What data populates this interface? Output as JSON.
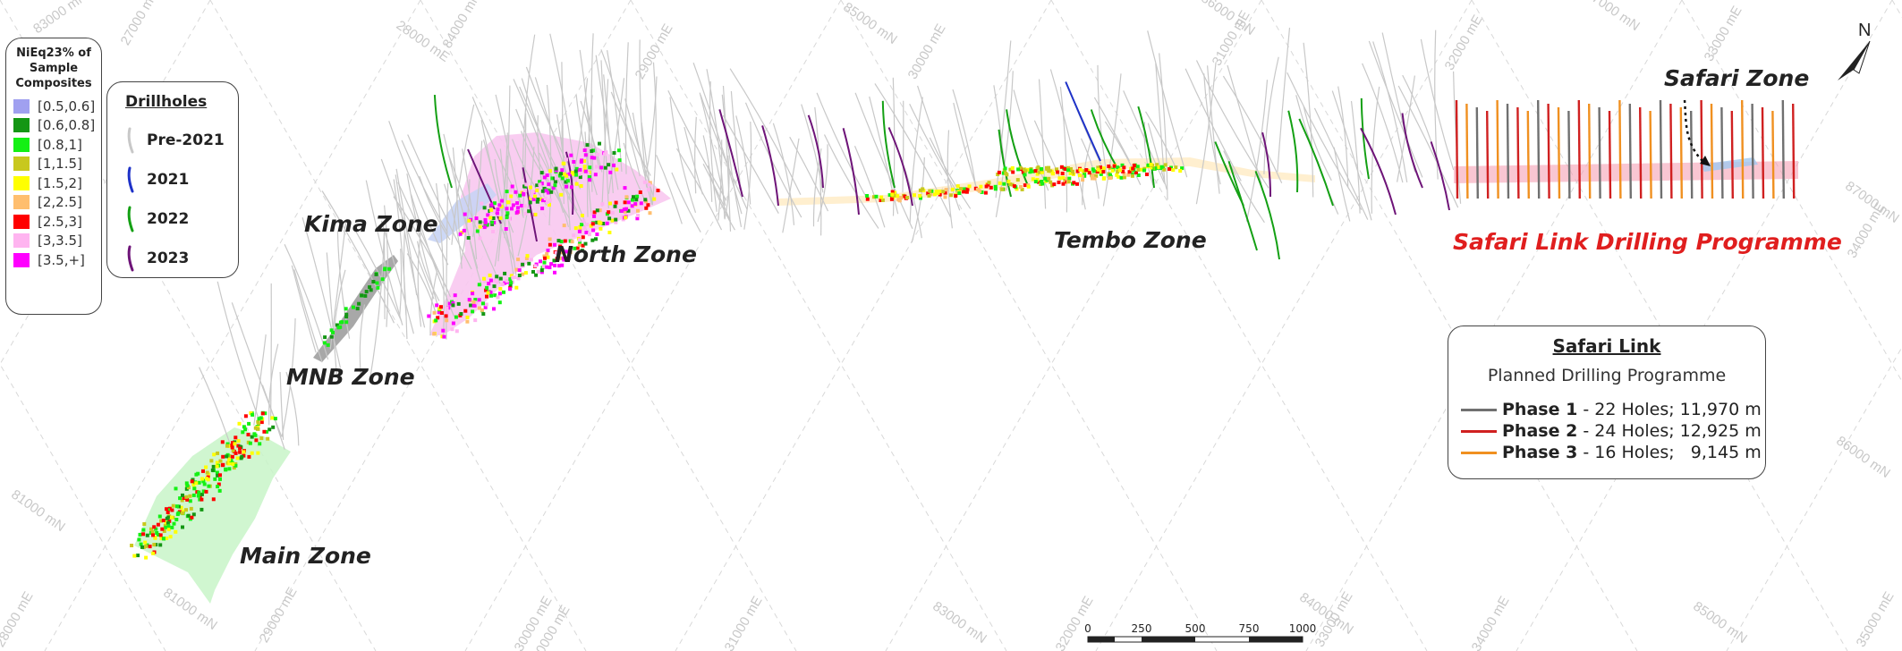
{
  "composites_legend": {
    "title": "NiEq23% of Sample Composites",
    "title_lines": [
      "NiEq23% of",
      "Sample",
      "Composites"
    ],
    "items": [
      {
        "label": "[0.5,0.6]",
        "color": "#a0a0f0"
      },
      {
        "label": "[0.6,0.8]",
        "color": "#149614"
      },
      {
        "label": "[0.8,1]",
        "color": "#14f014"
      },
      {
        "label": "[1,1.5]",
        "color": "#c8c81e"
      },
      {
        "label": "[1.5,2]",
        "color": "#ffff00"
      },
      {
        "label": "[2,2.5]",
        "color": "#ffbe6e"
      },
      {
        "label": "[2.5,3]",
        "color": "#ff0000"
      },
      {
        "label": "[3,3.5]",
        "color": "#ffb4f0"
      },
      {
        "label": "[3.5,+]",
        "color": "#ff00ff"
      }
    ]
  },
  "drillholes_legend": {
    "title": "Drillholes",
    "items": [
      {
        "label": "Pre-2021",
        "color": "#c8c8c8"
      },
      {
        "label": "2021",
        "color": "#1e32c8"
      },
      {
        "label": "2022",
        "color": "#14a014"
      },
      {
        "label": "2023",
        "color": "#6e1478"
      }
    ]
  },
  "zones": {
    "kima": "Kima Zone",
    "north": "North Zone",
    "mnb": "MNB Zone",
    "main": "Main Zone",
    "tembo": "Tembo Zone",
    "safari": "Safari Zone",
    "safari_link": "Safari Link Drilling Programme"
  },
  "safari_link_colors": {
    "label": "#e01e1e"
  },
  "plan_legend": {
    "title": "Safari Link ",
    "subtitle": "Planned Drilling Programme",
    "phases": [
      {
        "name": "Phase 1",
        "detail": " - 22 Holes; 11,970 m",
        "color": "#707070"
      },
      {
        "name": "Phase 2",
        "detail": " - 24 Holes; 12,925 m",
        "color": "#d02020"
      },
      {
        "name": "Phase 3",
        "detail": " - 16 Holes;   9,145 m",
        "color": "#f09020"
      }
    ]
  },
  "scale_bar": {
    "ticks": [
      "0",
      "250",
      "500",
      "750",
      "1000"
    ]
  },
  "north_arrow": {
    "label": "N"
  },
  "grid_labels": [
    "83000 mN",
    "27000 mE",
    "84000 mN",
    "28000 mE",
    "29000 mE",
    "85000 mN",
    "30000 mE",
    "86000 mN",
    "31000 mE",
    "32000 mE",
    "87000 mN",
    "33000 mE",
    "87000 mN",
    "34000 mE",
    "86000 mN",
    "81000 mN",
    "28000 mE",
    "81000 mN",
    "29000 mE",
    "30000 mE",
    "83000 mN",
    "31000 mE",
    "32000 mE",
    "84000 mN",
    "33000 mE",
    "34000 mE",
    "85000 mN",
    "35000 mE",
    "30000 mE"
  ]
}
